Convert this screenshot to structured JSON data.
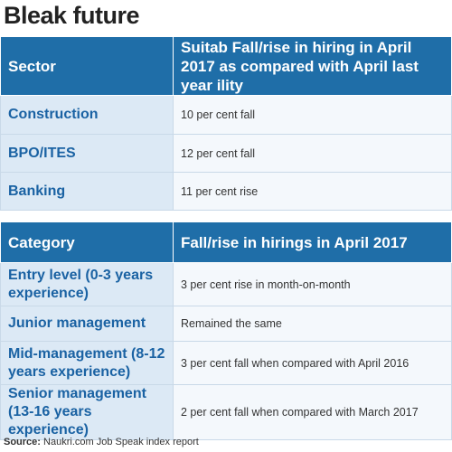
{
  "title": "Bleak future",
  "tables": [
    {
      "header": [
        "Sector",
        "Suitab Fall/rise in hiring in April 2017 as compared with April last year ility"
      ],
      "rows": [
        [
          "Construction",
          "10 per cent fall"
        ],
        [
          "BPO/ITES",
          "12 per cent fall"
        ],
        [
          "Banking",
          "11 per cent rise"
        ]
      ]
    },
    {
      "header": [
        "Category",
        "Fall/rise in hirings in April 2017"
      ],
      "rows": [
        [
          "Entry level (0-3 years experience)",
          "3 per cent rise in month-on-month"
        ],
        [
          "Junior management",
          "Remained the same"
        ],
        [
          "Mid-management (8-12 years experience)",
          "3 per cent fall when compared with April 2016"
        ],
        [
          "Senior management (13-16 years experience)",
          "2 per cent fall when compared with March 2017"
        ]
      ]
    }
  ],
  "source": {
    "label": "Source:",
    "text": "Naukri.com Job Speak index report"
  }
}
